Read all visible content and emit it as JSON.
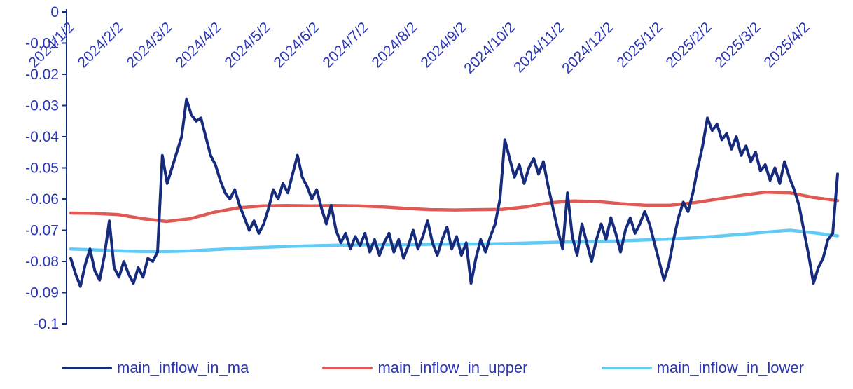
{
  "chart_data": {
    "type": "line",
    "title": "",
    "legend_position": "bottom",
    "grid": false,
    "axis_color": "#172b7d",
    "tick_label_color": "#2b36b0",
    "ylim": [
      -0.1,
      0
    ],
    "y_ticks": [
      0,
      -0.01,
      -0.02,
      -0.03,
      -0.04,
      -0.05,
      -0.06,
      -0.07,
      -0.08,
      -0.09,
      -0.1
    ],
    "y_tick_labels": [
      "0",
      "-0.01",
      "-0.02",
      "-0.03",
      "-0.04",
      "-0.05",
      "-0.06",
      "-0.07",
      "-0.08",
      "-0.09",
      "-0.1"
    ],
    "x_tick_labels": [
      "2024/1/2",
      "2024/2/2",
      "2024/3/2",
      "2024/4/2",
      "2024/5/2",
      "2024/6/2",
      "2024/7/2",
      "2024/8/2",
      "2024/9/2",
      "2024/10/2",
      "2024/11/2",
      "2024/12/2",
      "2025/1/2",
      "2025/2/2",
      "2025/3/2",
      "2025/4/2"
    ],
    "series": [
      {
        "name": "main_inflow_in_ma",
        "color": "#172b7d",
        "width": 4,
        "values": [
          -0.079,
          -0.084,
          -0.088,
          -0.081,
          -0.076,
          -0.083,
          -0.086,
          -0.078,
          -0.067,
          -0.082,
          -0.085,
          -0.08,
          -0.084,
          -0.087,
          -0.082,
          -0.085,
          -0.079,
          -0.08,
          -0.077,
          -0.046,
          -0.055,
          -0.05,
          -0.045,
          -0.04,
          -0.028,
          -0.033,
          -0.035,
          -0.034,
          -0.04,
          -0.046,
          -0.049,
          -0.054,
          -0.058,
          -0.06,
          -0.057,
          -0.062,
          -0.066,
          -0.07,
          -0.067,
          -0.071,
          -0.068,
          -0.063,
          -0.057,
          -0.06,
          -0.055,
          -0.058,
          -0.052,
          -0.046,
          -0.053,
          -0.056,
          -0.06,
          -0.057,
          -0.063,
          -0.068,
          -0.062,
          -0.07,
          -0.074,
          -0.071,
          -0.076,
          -0.072,
          -0.075,
          -0.071,
          -0.077,
          -0.073,
          -0.078,
          -0.074,
          -0.071,
          -0.077,
          -0.073,
          -0.079,
          -0.075,
          -0.07,
          -0.076,
          -0.072,
          -0.067,
          -0.074,
          -0.078,
          -0.073,
          -0.069,
          -0.076,
          -0.072,
          -0.078,
          -0.074,
          -0.087,
          -0.079,
          -0.073,
          -0.077,
          -0.072,
          -0.068,
          -0.06,
          -0.041,
          -0.047,
          -0.053,
          -0.049,
          -0.055,
          -0.05,
          -0.047,
          -0.052,
          -0.048,
          -0.056,
          -0.063,
          -0.07,
          -0.076,
          -0.058,
          -0.072,
          -0.078,
          -0.068,
          -0.074,
          -0.08,
          -0.073,
          -0.068,
          -0.073,
          -0.066,
          -0.071,
          -0.077,
          -0.07,
          -0.066,
          -0.071,
          -0.068,
          -0.064,
          -0.068,
          -0.074,
          -0.08,
          -0.086,
          -0.081,
          -0.073,
          -0.066,
          -0.061,
          -0.064,
          -0.058,
          -0.05,
          -0.043,
          -0.034,
          -0.038,
          -0.036,
          -0.041,
          -0.039,
          -0.044,
          -0.04,
          -0.046,
          -0.043,
          -0.048,
          -0.045,
          -0.051,
          -0.049,
          -0.054,
          -0.05,
          -0.055,
          -0.048,
          -0.053,
          -0.057,
          -0.062,
          -0.07,
          -0.078,
          -0.087,
          -0.082,
          -0.079,
          -0.073,
          -0.071,
          -0.052
        ]
      },
      {
        "name": "main_inflow_in_upper",
        "color": "#e05a55",
        "width": 4.5,
        "values": [
          -0.0645,
          -0.0646,
          -0.065,
          -0.0663,
          -0.0672,
          -0.0663,
          -0.0642,
          -0.0628,
          -0.0622,
          -0.0621,
          -0.0622,
          -0.0621,
          -0.0622,
          -0.0625,
          -0.063,
          -0.0634,
          -0.0635,
          -0.0634,
          -0.0633,
          -0.0625,
          -0.0612,
          -0.0606,
          -0.0608,
          -0.0615,
          -0.062,
          -0.062,
          -0.0612,
          -0.06,
          -0.0588,
          -0.0578,
          -0.058,
          -0.0595,
          -0.0605
        ]
      },
      {
        "name": "main_inflow_in_lower",
        "color": "#62cbf5",
        "width": 4.5,
        "values": [
          -0.076,
          -0.0763,
          -0.0766,
          -0.0768,
          -0.0768,
          -0.0766,
          -0.0762,
          -0.0758,
          -0.0755,
          -0.0752,
          -0.075,
          -0.0748,
          -0.0747,
          -0.0746,
          -0.0746,
          -0.0745,
          -0.0744,
          -0.0744,
          -0.0743,
          -0.0741,
          -0.0739,
          -0.0737,
          -0.0736,
          -0.0734,
          -0.0731,
          -0.0728,
          -0.0724,
          -0.0719,
          -0.0713,
          -0.0706,
          -0.07,
          -0.0708,
          -0.0718
        ]
      }
    ]
  }
}
